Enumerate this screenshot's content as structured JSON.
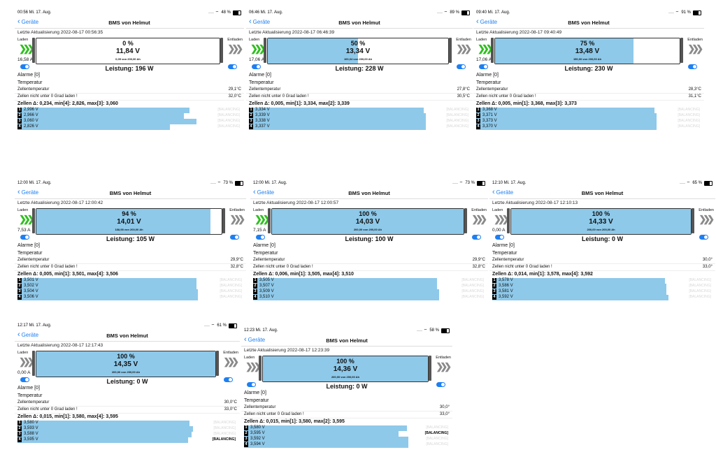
{
  "app": {
    "title": "BMS von Helmut",
    "back_label": "Geräte",
    "laden_label": "Laden",
    "entladen_label": "Entladen",
    "last_update_label": "Letzte Aktualisierung",
    "alarms_label": "Alarme [0]",
    "temp_label": "Temperatur",
    "cell_temp_label": "Zellentemperatur",
    "no_charge_label": "Zellen nicht unter 0 Grad laden !",
    "balancing_label": "[BALANCING]",
    "leistung_prefix": "Leistung:"
  },
  "panels": [
    {
      "status_time": "00:56  Mi. 17. Aug.",
      "status_right": "48 %",
      "last_update": "2022-08-17 00:56:35",
      "percent": "0 %",
      "fill": 0.0,
      "voltage": "11,84 V",
      "ah": "0,05 von 200,00 Ah",
      "current": "16,58 A",
      "charging": true,
      "power": "196 W",
      "cell_temp": "29,1°C",
      "no_charge_temp": "32,0°C",
      "cells_summary": "Zellen Δ: 0,234, min[4]: 2,826, max[3]: 3,060",
      "cells": [
        {
          "n": "1",
          "v": "2,996 V",
          "level": 0.96,
          "balancing": false
        },
        {
          "n": "2",
          "v": "2,966 V",
          "level": 0.93,
          "balancing": false
        },
        {
          "n": "3",
          "v": "3,060 V",
          "level": 1.0,
          "balancing": false
        },
        {
          "n": "4",
          "v": "2,826 V",
          "level": 0.85,
          "balancing": false
        }
      ]
    },
    {
      "status_time": "06:46  Mi. 17. Aug.",
      "status_right": "89 %",
      "last_update": "2022-08-17 06:46:39",
      "percent": "50 %",
      "fill": 0.5,
      "voltage": "13,34 V",
      "ah": "100,04 von 200,00 Ah",
      "current": "17,06 A",
      "charging": true,
      "power": "228 W",
      "cell_temp": "27,8°C",
      "no_charge_temp": "30,5°C",
      "cells_summary": "Zellen Δ: 0,005, min[1]: 3,334, max[2]: 3,339",
      "cells": [
        {
          "n": "1",
          "v": "3,334 V",
          "level": 0.99,
          "balancing": false
        },
        {
          "n": "2",
          "v": "3,339 V",
          "level": 1.0,
          "balancing": false
        },
        {
          "n": "3",
          "v": "3,338 V",
          "level": 1.0,
          "balancing": false
        },
        {
          "n": "4",
          "v": "3,337 V",
          "level": 1.0,
          "balancing": false
        }
      ]
    },
    {
      "status_time": "09:40  Mi. 17. Aug.",
      "status_right": "91 %",
      "last_update": "2022-08-17 09:40:49",
      "percent": "75 %",
      "fill": 0.75,
      "voltage": "13,48 V",
      "ah": "150,00 von 200,00 Ah",
      "current": "17,06 A",
      "charging": true,
      "power": "230 W",
      "cell_temp": "28,3°C",
      "no_charge_temp": "31,1°C",
      "cells_summary": "Zellen Δ: 0,005, min[1]: 3,368, max[3]: 3,373",
      "cells": [
        {
          "n": "1",
          "v": "3,368 V",
          "level": 0.99,
          "balancing": false
        },
        {
          "n": "2",
          "v": "3,371 V",
          "level": 1.0,
          "balancing": false
        },
        {
          "n": "3",
          "v": "3,373 V",
          "level": 1.0,
          "balancing": false
        },
        {
          "n": "4",
          "v": "3,370 V",
          "level": 1.0,
          "balancing": false
        }
      ]
    },
    {
      "status_time": "12:00  Mi. 17. Aug.",
      "status_right": "73 %",
      "last_update": "2022-08-17 12:00:42",
      "percent": "94 %",
      "fill": 0.94,
      "voltage": "14,01 V",
      "ah": "188,98 von 200,00 Ah",
      "current": "7,53 A",
      "charging": true,
      "power": "105 W",
      "cell_temp": "29,9°C",
      "no_charge_temp": "32,8°C",
      "cells_summary": "Zellen Δ: 0,005, min[1]: 3,501, max[4]: 3,506",
      "cells": [
        {
          "n": "1",
          "v": "3,501 V",
          "level": 0.99,
          "balancing": false
        },
        {
          "n": "2",
          "v": "3,502 V",
          "level": 0.99,
          "balancing": false
        },
        {
          "n": "3",
          "v": "3,504 V",
          "level": 1.0,
          "balancing": false
        },
        {
          "n": "4",
          "v": "3,506 V",
          "level": 1.0,
          "balancing": false
        }
      ]
    },
    {
      "status_time": "12:00  Mi. 17. Aug.",
      "status_right": "73 %",
      "last_update": "2022-08-17 12:00:57",
      "percent": "100 %",
      "fill": 1.0,
      "voltage": "14,03 V",
      "ah": "200,00 von 200,00 Ah",
      "current": "7,15 A",
      "charging": true,
      "power": "100 W",
      "cell_temp": "29,9°C",
      "no_charge_temp": "32,8°C",
      "cells_summary": "Zellen Δ: 0,006, min[1]: 3,505, max[4]: 3,510",
      "cells": [
        {
          "n": "1",
          "v": "3,505 V",
          "level": 0.99,
          "balancing": false
        },
        {
          "n": "2",
          "v": "3,507 V",
          "level": 0.99,
          "balancing": false
        },
        {
          "n": "3",
          "v": "3,509 V",
          "level": 1.0,
          "balancing": false
        },
        {
          "n": "4",
          "v": "3,510 V",
          "level": 1.0,
          "balancing": false
        }
      ]
    },
    {
      "status_time": "12:10  Mi. 17. Aug.",
      "status_right": "65 %",
      "last_update": "2022-08-17 12:10:13",
      "percent": "100 %",
      "fill": 1.0,
      "voltage": "14,33 V",
      "ah": "200,00 von 200,00 Ah",
      "current": "0,00 A",
      "charging": false,
      "power": "0 W",
      "cell_temp": "30,0°",
      "no_charge_temp": "33,0°",
      "cells_summary": "Zellen Δ: 0,014, min[1]: 3,578, max[4]: 3,592",
      "cells": [
        {
          "n": "1",
          "v": "3,578 V",
          "level": 0.98,
          "balancing": false
        },
        {
          "n": "2",
          "v": "3,586 V",
          "level": 0.99,
          "balancing": false
        },
        {
          "n": "3",
          "v": "3,581 V",
          "level": 0.99,
          "balancing": false
        },
        {
          "n": "4",
          "v": "3,592 V",
          "level": 1.0,
          "balancing": false
        }
      ]
    },
    {
      "status_time": "12:17  Mi. 17. Aug.",
      "status_right": "61 %",
      "last_update": "2022-08-17 12:17:43",
      "percent": "100 %",
      "fill": 1.0,
      "voltage": "14,35 V",
      "ah": "200,00 von 200,00 Ah",
      "current": "0,00 A",
      "charging": false,
      "power": "0 W",
      "cell_temp": "30,0°C",
      "no_charge_temp": "33,0°C",
      "cells_summary": "Zellen Δ: 0,015, min[1]: 3,580, max[4]: 3,595",
      "cells": [
        {
          "n": "1",
          "v": "3,580 V",
          "level": 0.98,
          "balancing": false
        },
        {
          "n": "2",
          "v": "3,593 V",
          "level": 1.0,
          "balancing": false
        },
        {
          "n": "3",
          "v": "3,588 V",
          "level": 0.99,
          "balancing": false
        },
        {
          "n": "4",
          "v": "3,595 V",
          "level": 0.97,
          "balancing": true
        }
      ]
    },
    {
      "status_time": "12:23  Mi. 17. Aug.",
      "status_right": "58 %",
      "last_update": "2022-08-17 12:23:39",
      "percent": "100 %",
      "fill": 1.0,
      "voltage": "14,36 V",
      "ah": "200,00 von 200,00 Ah",
      "current": "",
      "charging": false,
      "power": "0 W",
      "cell_temp": "30,0°",
      "no_charge_temp": "33,0°",
      "cells_summary": "Zellen Δ: 0,015, min[1]: 3,580, max[2]: 3,595",
      "cells": [
        {
          "n": "1",
          "v": "3,580 V",
          "level": 0.99,
          "balancing": false
        },
        {
          "n": "2",
          "v": "3,595 V",
          "level": 0.94,
          "balancing": true
        },
        {
          "n": "3",
          "v": "3,592 V",
          "level": 1.0,
          "balancing": false
        },
        {
          "n": "4",
          "v": "3,594 V",
          "level": 1.0,
          "balancing": false
        }
      ]
    }
  ]
}
